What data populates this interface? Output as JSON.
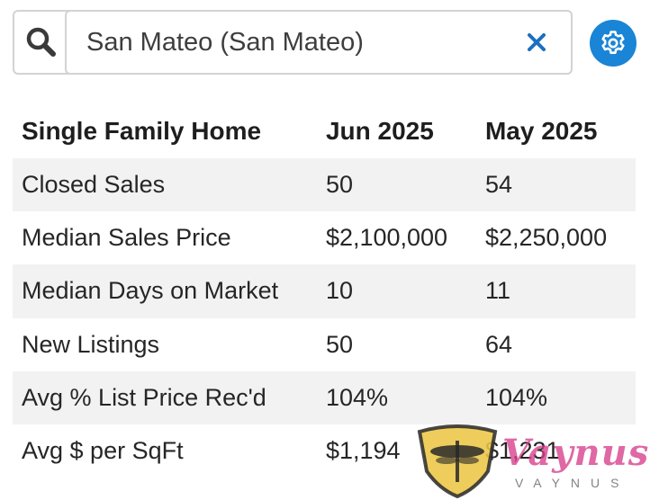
{
  "search": {
    "value": "San Mateo (San Mateo)",
    "search_icon": "search-icon",
    "clear_icon": "close-icon"
  },
  "settings": {
    "icon": "gear-icon",
    "color": "#1a84d6"
  },
  "table": {
    "headers": [
      "Single Family Home",
      "Jun 2025",
      "May 2025"
    ],
    "rows": [
      {
        "label": "Closed Sales",
        "current": "50",
        "previous": "54"
      },
      {
        "label": "Median Sales Price",
        "current": "$2,100,000",
        "previous": "$2,250,000"
      },
      {
        "label": "Median Days on Market",
        "current": "10",
        "previous": "11"
      },
      {
        "label": "New Listings",
        "current": "50",
        "previous": "64"
      },
      {
        "label": "Avg % List Price Rec'd",
        "current": "104%",
        "previous": "104%"
      },
      {
        "label": "Avg $ per SqFt",
        "current": "$1,194",
        "previous": "$1,231"
      }
    ]
  },
  "watermark": {
    "script": "Vaynus",
    "small": "VAYNUS"
  }
}
